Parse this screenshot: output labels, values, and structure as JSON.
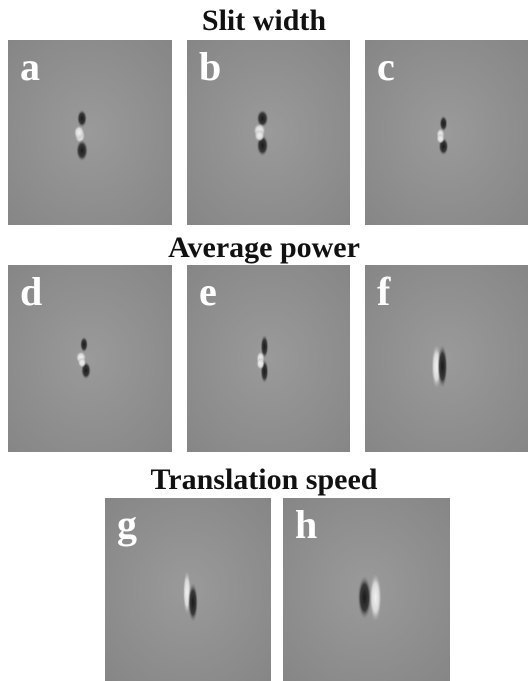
{
  "sections": [
    {
      "title": "Slit width",
      "panels": [
        "a",
        "b",
        "c"
      ]
    },
    {
      "title": "Average power",
      "panels": [
        "d",
        "e",
        "f"
      ]
    },
    {
      "title": "Translation speed",
      "panels": [
        "g",
        "h"
      ]
    }
  ]
}
